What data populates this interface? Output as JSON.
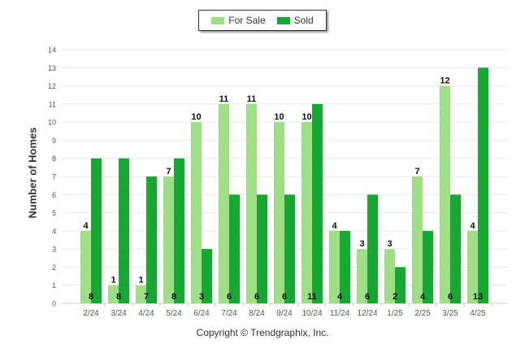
{
  "chart_data": {
    "type": "bar",
    "categories": [
      "2/24",
      "3/24",
      "4/24",
      "5/24",
      "6/24",
      "7/24",
      "8/24",
      "9/24",
      "10/24",
      "11/24",
      "12/24",
      "1/25",
      "2/25",
      "3/25",
      "4/25"
    ],
    "series": [
      {
        "name": "For Sale",
        "values": [
          4,
          1,
          1,
          7,
          10,
          11,
          11,
          10,
          10,
          4,
          3,
          3,
          7,
          12,
          4
        ],
        "color": "#9ede86"
      },
      {
        "name": "Sold",
        "values": [
          8,
          8,
          7,
          8,
          3,
          6,
          6,
          6,
          11,
          4,
          6,
          2,
          4,
          6,
          13
        ],
        "color": "#16a832"
      }
    ],
    "title": "",
    "xlabel": "",
    "ylabel": "Number of Homes",
    "ylim": [
      0,
      14
    ],
    "yticks": [
      0,
      1,
      2,
      3,
      4,
      5,
      6,
      7,
      8,
      9,
      10,
      11,
      12,
      13,
      14
    ],
    "grid": true,
    "legend_position": "top-center"
  },
  "footer": {
    "copyright": "Copyright © Trendgraphix, Inc."
  }
}
